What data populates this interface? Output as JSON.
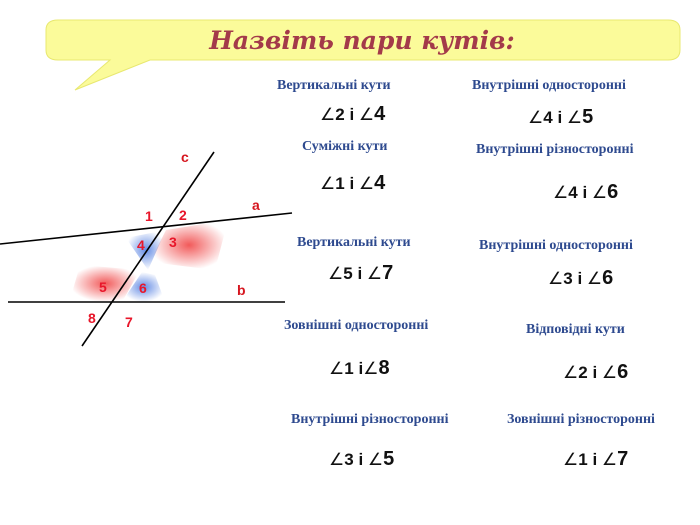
{
  "title": "Назвіть пари кутів:",
  "colors": {
    "title": "#a33a4a",
    "label": "#2e4a8f",
    "banner": "#fbfb9a",
    "figure_numbers": "#e8162a",
    "figure_letters": "#d6161f",
    "highlight_red": "#f04848",
    "highlight_blue": "#4a78e0"
  },
  "figure": {
    "line_c": "c",
    "line_a": "a",
    "line_b": "b",
    "angle_numbers": [
      "1",
      "2",
      "3",
      "4",
      "5",
      "6",
      "7",
      "8"
    ]
  },
  "items": [
    {
      "label": "Вертикальні кути",
      "angle_a": "2",
      "conj": "і",
      "angle_b": "4"
    },
    {
      "label": "Внутрішні односторонні",
      "angle_a": "4",
      "conj": "і",
      "angle_b": "5"
    },
    {
      "label": "Суміжні кути",
      "angle_a": "1",
      "conj": "і",
      "angle_b": "4"
    },
    {
      "label": "Внутрішні різносторонні",
      "angle_a": "4",
      "conj": "і",
      "angle_b": "6"
    },
    {
      "label": "Вертикальні кути",
      "angle_a": "5",
      "conj": "і",
      "angle_b": "7"
    },
    {
      "label": "Внутрішні односторонні",
      "angle_a": "3",
      "conj": "і",
      "angle_b": "6"
    },
    {
      "label": "Зовнішні односторонні",
      "angle_a": "1",
      "conj": "і",
      "angle_b": "8"
    },
    {
      "label": "Відповідні кути",
      "angle_a": "2",
      "conj": "і",
      "angle_b": "6"
    },
    {
      "label": "Внутрішні різносторонні",
      "angle_a": "3",
      "conj": "і",
      "angle_b": "5"
    },
    {
      "label": "Зовнішні різносторонні",
      "angle_a": "1",
      "conj": "і",
      "angle_b": "7"
    }
  ]
}
